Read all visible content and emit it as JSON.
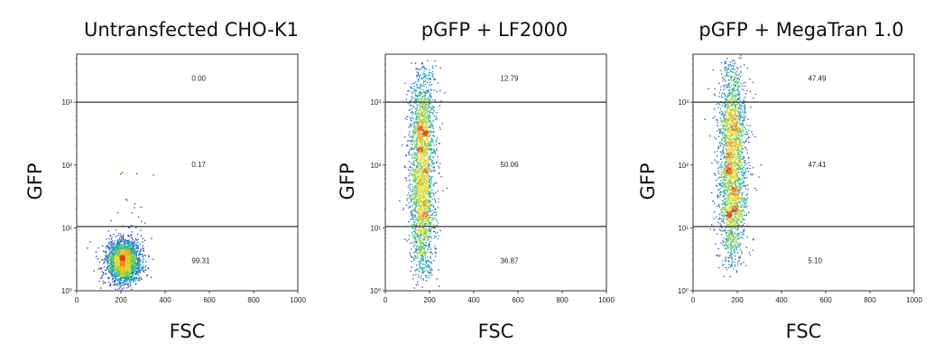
{
  "chart_data": [
    {
      "type": "scatter",
      "title": "Untransfected CHO-K1",
      "xlabel": "FSC",
      "ylabel": "GFP",
      "xlim": [
        0,
        1000
      ],
      "xticks": [
        "0",
        "200",
        "400",
        "600",
        "800",
        "1000"
      ],
      "yscale": "log",
      "ylim": [
        1,
        5800
      ],
      "yticks": [
        "10^0",
        "10^1",
        "10^2",
        "10^3"
      ],
      "gates": [
        10.5,
        1000
      ],
      "gate_percentages": [
        {
          "region": "high",
          "value": "0.00"
        },
        {
          "region": "mid",
          "value": "0.17"
        },
        {
          "region": "low",
          "value": "99.31"
        }
      ],
      "populations": [
        {
          "fsc_center": 210,
          "fsc_spread": 35,
          "gfp_center": 3.0,
          "gfp_spread_decades": 0.17,
          "share": 0.9931
        },
        {
          "fsc_center": 250,
          "fsc_spread": 45,
          "gfp_center": 30,
          "gfp_spread_decades": 0.45,
          "share": 0.0069
        }
      ]
    },
    {
      "type": "scatter",
      "title": "pGFP + LF2000",
      "xlabel": "FSC",
      "ylabel": "GFP",
      "xlim": [
        0,
        1000
      ],
      "xticks": [
        "0",
        "200",
        "400",
        "600",
        "800",
        "1000"
      ],
      "yscale": "log",
      "ylim": [
        1,
        5800
      ],
      "yticks": [
        "10^0",
        "10^1",
        "10^2",
        "10^3"
      ],
      "gates": [
        10.5,
        1000
      ],
      "gate_percentages": [
        {
          "region": "high",
          "value": "12.79"
        },
        {
          "region": "mid",
          "value": "50.06"
        },
        {
          "region": "low",
          "value": "36.87"
        }
      ],
      "populations": [
        {
          "fsc_center": 165,
          "fsc_spread": 28,
          "gfp_log_range": [
            0.05,
            3.75
          ],
          "share": 1.0
        }
      ]
    },
    {
      "type": "scatter",
      "title": "pGFP + MegaTran 1.0",
      "xlabel": "FSC",
      "ylabel": "GFP",
      "xlim": [
        0,
        1000
      ],
      "xticks": [
        "0",
        "200",
        "400",
        "600",
        "800",
        "1000"
      ],
      "yscale": "log",
      "ylim": [
        1,
        5800
      ],
      "yticks": [
        "10^0",
        "10^1",
        "10^2",
        "10^3"
      ],
      "gates": [
        10.5,
        1000
      ],
      "gate_percentages": [
        {
          "region": "high",
          "value": "47.49"
        },
        {
          "region": "mid",
          "value": "47.41"
        },
        {
          "region": "low",
          "value": "5.10"
        }
      ],
      "populations": [
        {
          "fsc_center": 175,
          "fsc_spread": 30,
          "gfp_log_range": [
            0.3,
            3.75
          ],
          "share": 1.0
        }
      ]
    }
  ],
  "colors": {
    "density_low": "#2a2aa8",
    "density_mid": "#1fb0a0",
    "density_high": "#e8e030",
    "density_peak": "#e83020",
    "frame": "#444444",
    "gate_line": "#333333"
  }
}
